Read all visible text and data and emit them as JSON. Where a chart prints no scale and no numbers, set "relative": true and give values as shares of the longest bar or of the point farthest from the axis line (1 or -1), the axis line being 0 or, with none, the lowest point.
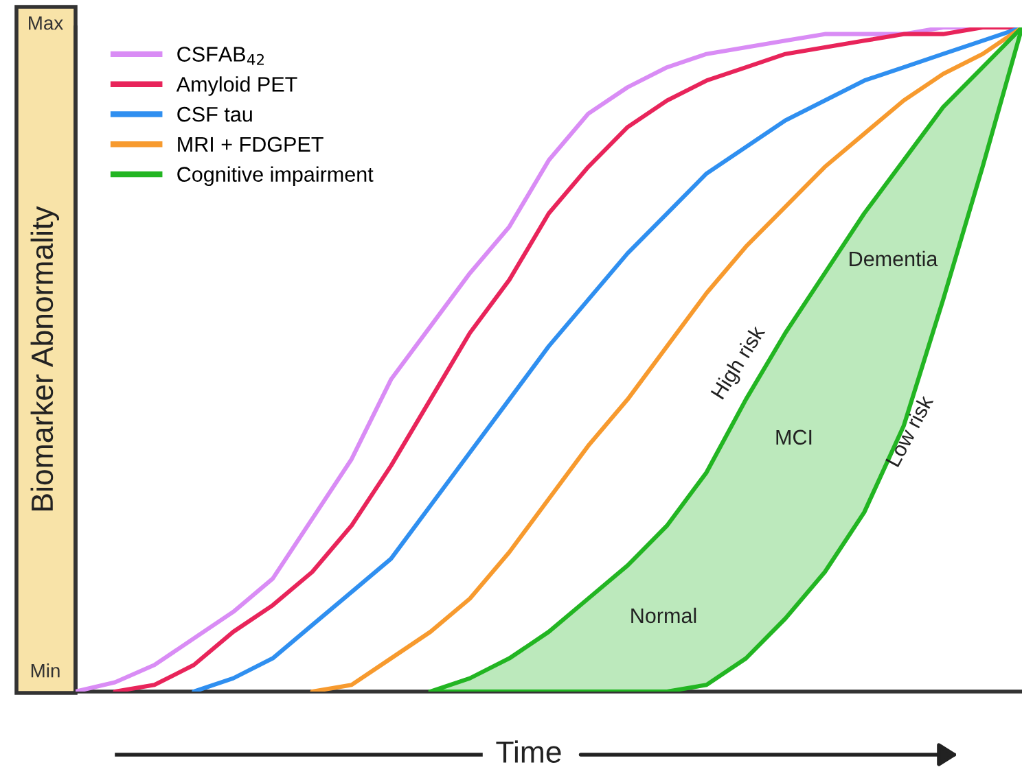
{
  "chart_data": {
    "type": "line",
    "xlabel": "Time",
    "ylabel": "Biomarker Abnormality",
    "categories": [
      null,
      null,
      null,
      null,
      null,
      null,
      null,
      null,
      null,
      null,
      null,
      null,
      null,
      null,
      null,
      null,
      null,
      null,
      null,
      null,
      null,
      null,
      null,
      null,
      null
    ],
    "relative": true,
    "legend": "top left",
    "marker": "none",
    "line_style": "solid",
    "series": [
      {
        "name": "CSFAB$_{42}$",
        "color": "#d98cf5",
        "values": [
          0,
          0.014,
          0.04,
          0.08,
          0.12,
          0.17,
          0.26,
          0.35,
          0.47,
          0.55,
          0.63,
          0.7,
          0.8,
          0.87,
          0.91,
          0.94,
          0.96,
          0.97,
          0.98,
          0.99,
          0.99,
          0.99,
          1,
          1,
          1
        ]
      },
      {
        "name": "Amyloid PET",
        "color": "#e8245a",
        "values": [
          null,
          0,
          0.01,
          0.04,
          0.09,
          0.13,
          0.18,
          0.25,
          0.34,
          0.44,
          0.54,
          0.62,
          0.72,
          0.79,
          0.85,
          0.89,
          0.92,
          0.94,
          0.96,
          0.97,
          0.98,
          0.99,
          0.99,
          1,
          1
        ]
      },
      {
        "name": "CSF tau",
        "color": "#2f8ff0",
        "values": [
          null,
          null,
          null,
          0,
          0.02,
          0.05,
          0.1,
          0.15,
          0.2,
          0.28,
          0.36,
          0.44,
          0.52,
          0.59,
          0.66,
          0.72,
          0.78,
          0.82,
          0.86,
          0.89,
          0.92,
          0.94,
          0.96,
          0.98,
          1
        ]
      },
      {
        "name": "MRI + FDGPET",
        "color": "#f79a2e",
        "values": [
          null,
          null,
          null,
          null,
          null,
          null,
          0,
          0.01,
          0.05,
          0.09,
          0.14,
          0.21,
          0.29,
          0.37,
          0.44,
          0.52,
          0.6,
          0.67,
          0.73,
          0.79,
          0.84,
          0.89,
          0.93,
          0.96,
          1
        ]
      },
      {
        "name": "Cognitive impairment",
        "color": "#22b522",
        "values": [
          null,
          null,
          null,
          null,
          null,
          null,
          null,
          null,
          null,
          0,
          0.02,
          0.05,
          0.09,
          0.14,
          0.19,
          0.25,
          0.33,
          0.44,
          0.54,
          0.63,
          0.72,
          0.8,
          0.88,
          0.94,
          1
        ],
        "upper": [
          null,
          null,
          null,
          null,
          null,
          null,
          null,
          null,
          null,
          0,
          0.02,
          0.05,
          0.09,
          0.14,
          0.19,
          0.25,
          0.33,
          0.44,
          0.54,
          0.63,
          0.72,
          0.8,
          0.88,
          0.94,
          1
        ],
        "lower": [
          null,
          null,
          null,
          null,
          null,
          null,
          null,
          null,
          null,
          0,
          0,
          0,
          0,
          0,
          0,
          0,
          0.01,
          0.05,
          0.11,
          0.18,
          0.27,
          0.4,
          0.59,
          0.79,
          1
        ]
      }
    ],
    "annotations": [
      "Max",
      "Min",
      "High risk",
      "Low risk",
      "Normal",
      "MCI",
      "Dementia"
    ]
  }
}
